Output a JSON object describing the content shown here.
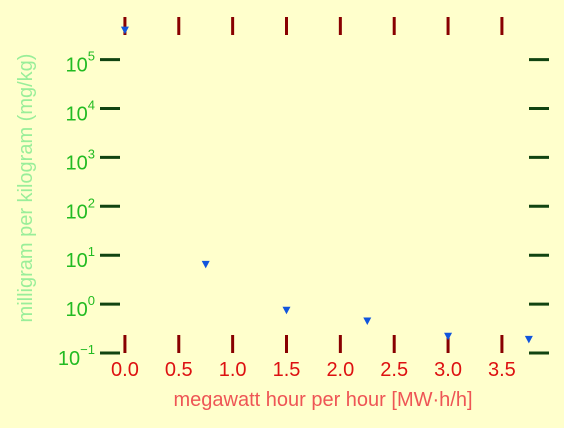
{
  "chart_data": {
    "type": "scatter",
    "title": "",
    "xlabel": "megawatt hour per hour [MW·h/h]",
    "ylabel": "milligram per kilogram (mg/kg)",
    "xscale": "linear",
    "yscale": "log",
    "xlim": [
      -0.12,
      3.77
    ],
    "ylim": [
      -1.0,
      5.85
    ],
    "x_ticks": [
      0.0,
      0.5,
      1.0,
      1.5,
      2.0,
      2.5,
      3.0,
      3.5
    ],
    "x_tick_labels": [
      "0.0",
      "0.5",
      "1.0",
      "1.5",
      "2.0",
      "2.5",
      "3.0",
      "3.5"
    ],
    "y_ticks": [
      0.1,
      1,
      10,
      100,
      1000,
      10000,
      100000
    ],
    "y_tick_labels": [
      {
        "base": "10",
        "exp": "−1"
      },
      {
        "base": "10",
        "exp": "0"
      },
      {
        "base": "10",
        "exp": "1"
      },
      {
        "base": "10",
        "exp": "2"
      },
      {
        "base": "10",
        "exp": "3"
      },
      {
        "base": "10",
        "exp": "4"
      },
      {
        "base": "10",
        "exp": "5"
      }
    ],
    "grid": false,
    "marker": "triangle-down",
    "series": [
      {
        "color": "#1155dd",
        "x": [
          0.0,
          0.75,
          1.5,
          2.25,
          3.0,
          3.75
        ],
        "y": [
          400000,
          6.5,
          0.75,
          0.45,
          0.22,
          0.19
        ]
      }
    ]
  },
  "colors": {
    "background": "#ffffcc",
    "x_tick_mark": "#880000",
    "y_tick_mark": "#114411",
    "x_tick_label": "#dd1111",
    "y_tick_label": "#22bb22",
    "xlabel": "#ee5555",
    "ylabel": "#99ee99"
  }
}
